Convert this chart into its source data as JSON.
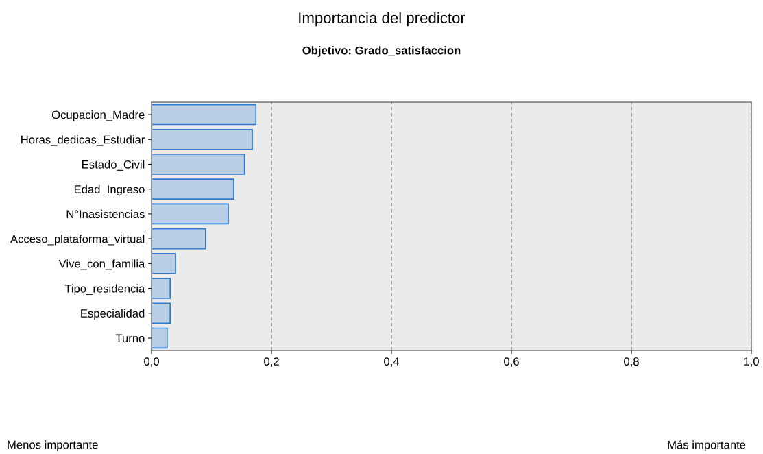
{
  "chart_data": {
    "type": "bar",
    "orientation": "horizontal",
    "title": "Importancia del predictor",
    "subtitle": "Objetivo: Grado_satisfaccion",
    "categories": [
      "Ocupacion_Madre",
      "Horas_dedicas_Estudiar",
      "Estado_Civil",
      "Edad_Ingreso",
      "N°Inasistencias",
      "Acceso_plataforma_virtual",
      "Vive_con_familia",
      "Tipo_residencia",
      "Especialidad",
      "Turno"
    ],
    "values": [
      0.174,
      0.168,
      0.155,
      0.137,
      0.128,
      0.09,
      0.04,
      0.031,
      0.031,
      0.026
    ],
    "color": "#b8cfe6",
    "xlim": [
      0,
      1
    ],
    "xticks": [
      {
        "value": 0,
        "label": "0,0"
      },
      {
        "value": 0.2,
        "label": "0,2"
      },
      {
        "value": 0.4,
        "label": "0,4"
      },
      {
        "value": 0.6,
        "label": "0,6"
      },
      {
        "value": 0.8,
        "label": "0,8"
      },
      {
        "value": 1,
        "label": "1,0"
      }
    ],
    "grid": "x",
    "annotations": [
      "Menos importante",
      "Más importante"
    ]
  }
}
